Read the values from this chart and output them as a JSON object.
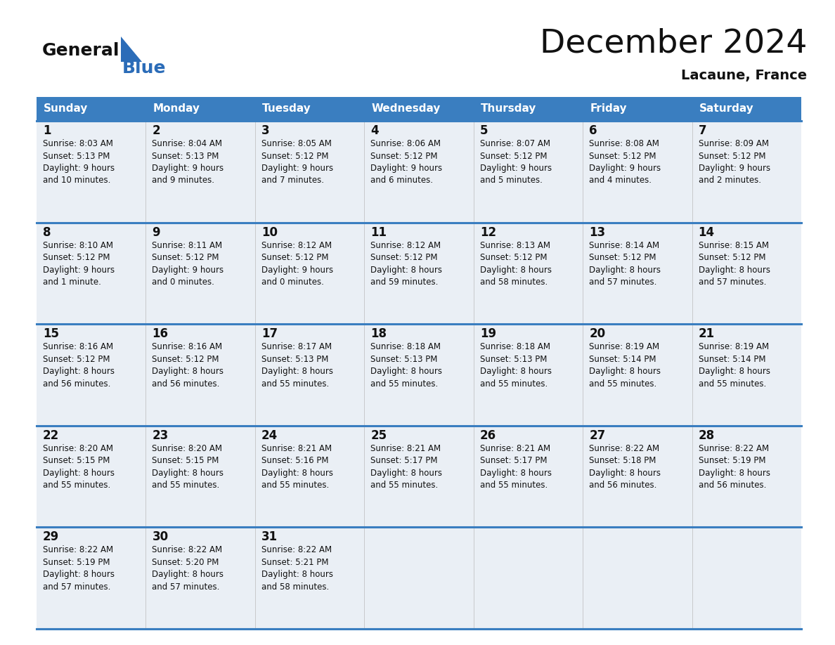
{
  "title": "December 2024",
  "subtitle": "Lacaune, France",
  "header_color": "#3A7EC0",
  "header_text_color": "#FFFFFF",
  "cell_bg_color": "#EAEFF5",
  "border_color": "#3A7EC0",
  "day_headers": [
    "Sunday",
    "Monday",
    "Tuesday",
    "Wednesday",
    "Thursday",
    "Friday",
    "Saturday"
  ],
  "days": [
    {
      "day": 1,
      "col": 0,
      "row": 0,
      "sunrise": "8:03 AM",
      "sunset": "5:13 PM",
      "daylight": "9 hours\nand 10 minutes."
    },
    {
      "day": 2,
      "col": 1,
      "row": 0,
      "sunrise": "8:04 AM",
      "sunset": "5:13 PM",
      "daylight": "9 hours\nand 9 minutes."
    },
    {
      "day": 3,
      "col": 2,
      "row": 0,
      "sunrise": "8:05 AM",
      "sunset": "5:12 PM",
      "daylight": "9 hours\nand 7 minutes."
    },
    {
      "day": 4,
      "col": 3,
      "row": 0,
      "sunrise": "8:06 AM",
      "sunset": "5:12 PM",
      "daylight": "9 hours\nand 6 minutes."
    },
    {
      "day": 5,
      "col": 4,
      "row": 0,
      "sunrise": "8:07 AM",
      "sunset": "5:12 PM",
      "daylight": "9 hours\nand 5 minutes."
    },
    {
      "day": 6,
      "col": 5,
      "row": 0,
      "sunrise": "8:08 AM",
      "sunset": "5:12 PM",
      "daylight": "9 hours\nand 4 minutes."
    },
    {
      "day": 7,
      "col": 6,
      "row": 0,
      "sunrise": "8:09 AM",
      "sunset": "5:12 PM",
      "daylight": "9 hours\nand 2 minutes."
    },
    {
      "day": 8,
      "col": 0,
      "row": 1,
      "sunrise": "8:10 AM",
      "sunset": "5:12 PM",
      "daylight": "9 hours\nand 1 minute."
    },
    {
      "day": 9,
      "col": 1,
      "row": 1,
      "sunrise": "8:11 AM",
      "sunset": "5:12 PM",
      "daylight": "9 hours\nand 0 minutes."
    },
    {
      "day": 10,
      "col": 2,
      "row": 1,
      "sunrise": "8:12 AM",
      "sunset": "5:12 PM",
      "daylight": "9 hours\nand 0 minutes."
    },
    {
      "day": 11,
      "col": 3,
      "row": 1,
      "sunrise": "8:12 AM",
      "sunset": "5:12 PM",
      "daylight": "8 hours\nand 59 minutes."
    },
    {
      "day": 12,
      "col": 4,
      "row": 1,
      "sunrise": "8:13 AM",
      "sunset": "5:12 PM",
      "daylight": "8 hours\nand 58 minutes."
    },
    {
      "day": 13,
      "col": 5,
      "row": 1,
      "sunrise": "8:14 AM",
      "sunset": "5:12 PM",
      "daylight": "8 hours\nand 57 minutes."
    },
    {
      "day": 14,
      "col": 6,
      "row": 1,
      "sunrise": "8:15 AM",
      "sunset": "5:12 PM",
      "daylight": "8 hours\nand 57 minutes."
    },
    {
      "day": 15,
      "col": 0,
      "row": 2,
      "sunrise": "8:16 AM",
      "sunset": "5:12 PM",
      "daylight": "8 hours\nand 56 minutes."
    },
    {
      "day": 16,
      "col": 1,
      "row": 2,
      "sunrise": "8:16 AM",
      "sunset": "5:12 PM",
      "daylight": "8 hours\nand 56 minutes."
    },
    {
      "day": 17,
      "col": 2,
      "row": 2,
      "sunrise": "8:17 AM",
      "sunset": "5:13 PM",
      "daylight": "8 hours\nand 55 minutes."
    },
    {
      "day": 18,
      "col": 3,
      "row": 2,
      "sunrise": "8:18 AM",
      "sunset": "5:13 PM",
      "daylight": "8 hours\nand 55 minutes."
    },
    {
      "day": 19,
      "col": 4,
      "row": 2,
      "sunrise": "8:18 AM",
      "sunset": "5:13 PM",
      "daylight": "8 hours\nand 55 minutes."
    },
    {
      "day": 20,
      "col": 5,
      "row": 2,
      "sunrise": "8:19 AM",
      "sunset": "5:14 PM",
      "daylight": "8 hours\nand 55 minutes."
    },
    {
      "day": 21,
      "col": 6,
      "row": 2,
      "sunrise": "8:19 AM",
      "sunset": "5:14 PM",
      "daylight": "8 hours\nand 55 minutes."
    },
    {
      "day": 22,
      "col": 0,
      "row": 3,
      "sunrise": "8:20 AM",
      "sunset": "5:15 PM",
      "daylight": "8 hours\nand 55 minutes."
    },
    {
      "day": 23,
      "col": 1,
      "row": 3,
      "sunrise": "8:20 AM",
      "sunset": "5:15 PM",
      "daylight": "8 hours\nand 55 minutes."
    },
    {
      "day": 24,
      "col": 2,
      "row": 3,
      "sunrise": "8:21 AM",
      "sunset": "5:16 PM",
      "daylight": "8 hours\nand 55 minutes."
    },
    {
      "day": 25,
      "col": 3,
      "row": 3,
      "sunrise": "8:21 AM",
      "sunset": "5:17 PM",
      "daylight": "8 hours\nand 55 minutes."
    },
    {
      "day": 26,
      "col": 4,
      "row": 3,
      "sunrise": "8:21 AM",
      "sunset": "5:17 PM",
      "daylight": "8 hours\nand 55 minutes."
    },
    {
      "day": 27,
      "col": 5,
      "row": 3,
      "sunrise": "8:22 AM",
      "sunset": "5:18 PM",
      "daylight": "8 hours\nand 56 minutes."
    },
    {
      "day": 28,
      "col": 6,
      "row": 3,
      "sunrise": "8:22 AM",
      "sunset": "5:19 PM",
      "daylight": "8 hours\nand 56 minutes."
    },
    {
      "day": 29,
      "col": 0,
      "row": 4,
      "sunrise": "8:22 AM",
      "sunset": "5:19 PM",
      "daylight": "8 hours\nand 57 minutes."
    },
    {
      "day": 30,
      "col": 1,
      "row": 4,
      "sunrise": "8:22 AM",
      "sunset": "5:20 PM",
      "daylight": "8 hours\nand 57 minutes."
    },
    {
      "day": 31,
      "col": 2,
      "row": 4,
      "sunrise": "8:22 AM",
      "sunset": "5:21 PM",
      "daylight": "8 hours\nand 58 minutes."
    }
  ]
}
